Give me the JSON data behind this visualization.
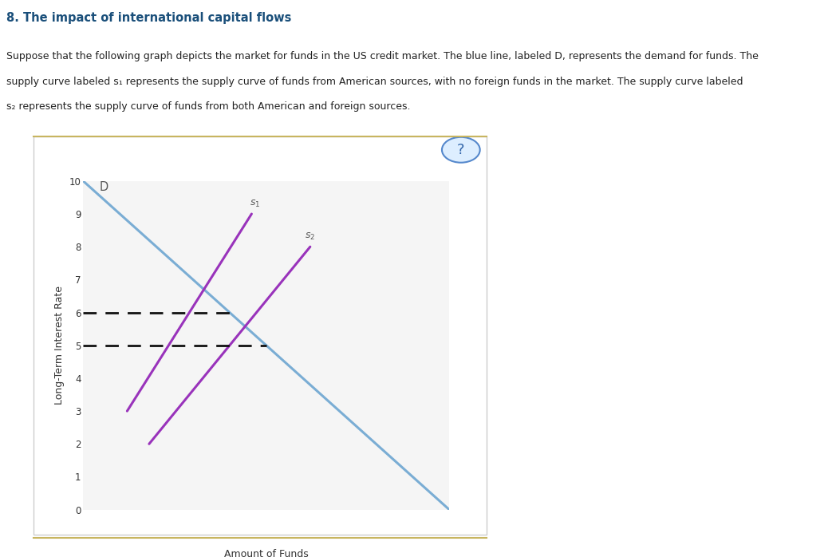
{
  "title": "8. The impact of international capital flows",
  "description_lines": [
    "Suppose that the following graph depicts the market for funds in the US credit market. The blue line, labeled D, represents the demand for funds. The",
    "supply curve labeled s₁ represents the supply curve of funds from American sources, with no foreign funds in the market. The supply curve labeled",
    "s₂ represents the supply curve of funds from both American and foreign sources."
  ],
  "ylabel": "Long-Term Interest Rate",
  "xlabel": "Amount of Funds",
  "ylim": [
    0,
    10
  ],
  "xlim": [
    0,
    10
  ],
  "yticks": [
    0,
    1,
    2,
    3,
    4,
    5,
    6,
    7,
    8,
    9,
    10
  ],
  "demand": {
    "x": [
      0,
      10
    ],
    "y": [
      10,
      0
    ],
    "color": "#7aadd4",
    "linewidth": 2.2
  },
  "s1": {
    "x": [
      1.2,
      4.6
    ],
    "y": [
      3.0,
      9.0
    ],
    "color": "#9933bb",
    "linewidth": 2.2
  },
  "s2": {
    "x": [
      1.8,
      6.2
    ],
    "y": [
      2.0,
      8.0
    ],
    "color": "#9933bb",
    "linewidth": 2.2
  },
  "dashed_y6_xend": 4.0,
  "dashed_y5_xend": 5.0,
  "dashed_color": "#111111",
  "dashed_linewidth": 2.0,
  "bg_color": "#ffffff",
  "panel_bg": "#f5f5f5",
  "outer_panel_bg": "#ffffff",
  "border_color_tan": "#c8b560",
  "border_color_gray": "#cccccc"
}
